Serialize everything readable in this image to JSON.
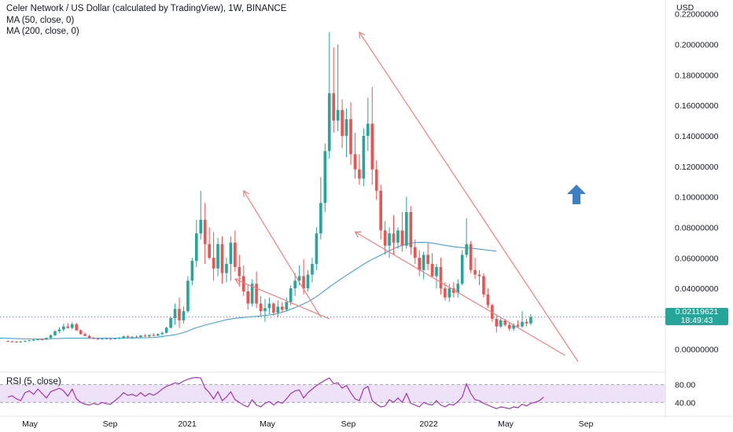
{
  "header": {
    "title": "Celer Network / US Dollar (calculated by TradingView), 1W, BINANCE",
    "ma50": "MA (50, close, 0)",
    "ma200": "MA (200, close, 0)",
    "currency": "USD"
  },
  "rsi": {
    "label": "RSI (5, close)",
    "levels": [
      "80.00",
      "40.00"
    ]
  },
  "price_badge": {
    "price": "0.02119621",
    "countdown": "18:49:43"
  },
  "colors": {
    "up": "#26a69a",
    "down": "#ef5350",
    "ma": "#4a9fd8",
    "trend": "#f08080",
    "rsi": "#9c27b0",
    "rsi_band": "#e7d6f7",
    "arrow": "#3d7fc7"
  },
  "chart_data": [
    {
      "type": "candlestick",
      "title": "Celer Network / US Dollar (calculated by TradingView), 1W, BINANCE",
      "ylabel": "USD",
      "ylim": [
        -0.012,
        0.225
      ],
      "y_ticks": [
        "0.22000000",
        "0.20000000",
        "0.18000000",
        "0.16000000",
        "0.14000000",
        "0.12000000",
        "0.10000000",
        "0.08000000",
        "0.06000000",
        "0.04000000",
        "0.00000000"
      ],
      "x_ticks": [
        "May",
        "Sep",
        "2021",
        "May",
        "Sep",
        "2022",
        "May",
        "Sep"
      ],
      "last_price": 0.02119621,
      "candles": [
        [
          0.0054,
          0.0058,
          0.0049,
          0.0052
        ],
        [
          0.0052,
          0.0056,
          0.0047,
          0.005
        ],
        [
          0.005,
          0.0054,
          0.0045,
          0.0048
        ],
        [
          0.0048,
          0.0053,
          0.0044,
          0.0051
        ],
        [
          0.0051,
          0.0058,
          0.0048,
          0.0055
        ],
        [
          0.0055,
          0.0062,
          0.0052,
          0.0059
        ],
        [
          0.0059,
          0.0065,
          0.0055,
          0.0062
        ],
        [
          0.0062,
          0.007,
          0.0058,
          0.0066
        ],
        [
          0.0066,
          0.0072,
          0.006,
          0.0064
        ],
        [
          0.0064,
          0.0078,
          0.006,
          0.0075
        ],
        [
          0.0075,
          0.0098,
          0.007,
          0.0092
        ],
        [
          0.0092,
          0.0125,
          0.0088,
          0.0118
        ],
        [
          0.0118,
          0.0145,
          0.0105,
          0.013
        ],
        [
          0.013,
          0.0168,
          0.0118,
          0.015
        ],
        [
          0.015,
          0.0172,
          0.0135,
          0.014
        ],
        [
          0.014,
          0.0178,
          0.0132,
          0.0165
        ],
        [
          0.0165,
          0.0175,
          0.012,
          0.0125
        ],
        [
          0.0125,
          0.013,
          0.0095,
          0.01
        ],
        [
          0.01,
          0.011,
          0.0085,
          0.0088
        ],
        [
          0.0088,
          0.0095,
          0.007,
          0.0074
        ],
        [
          0.0074,
          0.0082,
          0.0066,
          0.007
        ],
        [
          0.007,
          0.0078,
          0.0062,
          0.0068
        ],
        [
          0.0068,
          0.0075,
          0.0062,
          0.0071
        ],
        [
          0.0071,
          0.0078,
          0.0065,
          0.0069
        ],
        [
          0.0069,
          0.0074,
          0.0063,
          0.0067
        ],
        [
          0.0067,
          0.0076,
          0.0064,
          0.0072
        ],
        [
          0.0072,
          0.008,
          0.0066,
          0.0076
        ],
        [
          0.0076,
          0.009,
          0.007,
          0.0085
        ],
        [
          0.0085,
          0.0092,
          0.0074,
          0.0078
        ],
        [
          0.0078,
          0.0086,
          0.0071,
          0.0082
        ],
        [
          0.0082,
          0.0092,
          0.0076,
          0.008
        ],
        [
          0.008,
          0.0095,
          0.0074,
          0.009
        ],
        [
          0.009,
          0.01,
          0.008,
          0.0085
        ],
        [
          0.0085,
          0.0098,
          0.0078,
          0.0094
        ],
        [
          0.0094,
          0.0106,
          0.0085,
          0.009
        ],
        [
          0.009,
          0.0104,
          0.0086,
          0.01
        ],
        [
          0.01,
          0.0115,
          0.0092,
          0.0108
        ],
        [
          0.0108,
          0.0148,
          0.0104,
          0.0142
        ],
        [
          0.0142,
          0.0215,
          0.0135,
          0.0205
        ],
        [
          0.0205,
          0.03,
          0.016,
          0.0265
        ],
        [
          0.0265,
          0.034,
          0.014,
          0.019
        ],
        [
          0.019,
          0.028,
          0.017,
          0.025
        ],
        [
          0.025,
          0.048,
          0.024,
          0.045
        ],
        [
          0.045,
          0.06,
          0.042,
          0.058
        ],
        [
          0.058,
          0.085,
          0.054,
          0.076
        ],
        [
          0.076,
          0.104,
          0.072,
          0.085
        ],
        [
          0.085,
          0.096,
          0.056,
          0.069
        ],
        [
          0.069,
          0.08,
          0.059,
          0.06
        ],
        [
          0.06,
          0.077,
          0.045,
          0.053
        ],
        [
          0.053,
          0.073,
          0.048,
          0.069
        ],
        [
          0.069,
          0.074,
          0.043,
          0.05
        ],
        [
          0.05,
          0.06,
          0.044,
          0.056
        ],
        [
          0.056,
          0.074,
          0.045,
          0.07
        ],
        [
          0.07,
          0.078,
          0.051,
          0.054
        ],
        [
          0.054,
          0.062,
          0.041,
          0.048
        ],
        [
          0.048,
          0.055,
          0.035,
          0.038
        ],
        [
          0.038,
          0.042,
          0.026,
          0.03
        ],
        [
          0.03,
          0.046,
          0.028,
          0.043
        ],
        [
          0.043,
          0.051,
          0.027,
          0.03
        ],
        [
          0.03,
          0.035,
          0.022,
          0.025
        ],
        [
          0.025,
          0.033,
          0.018,
          0.027
        ],
        [
          0.027,
          0.034,
          0.023,
          0.03
        ],
        [
          0.03,
          0.031,
          0.022,
          0.024
        ],
        [
          0.024,
          0.032,
          0.021,
          0.028
        ],
        [
          0.028,
          0.031,
          0.024,
          0.026
        ],
        [
          0.026,
          0.034,
          0.025,
          0.031
        ],
        [
          0.031,
          0.042,
          0.029,
          0.04
        ],
        [
          0.04,
          0.05,
          0.035,
          0.045
        ],
        [
          0.045,
          0.055,
          0.042,
          0.048
        ],
        [
          0.048,
          0.059,
          0.036,
          0.04
        ],
        [
          0.04,
          0.052,
          0.038,
          0.049
        ],
        [
          0.049,
          0.06,
          0.044,
          0.056
        ],
        [
          0.056,
          0.08,
          0.052,
          0.076
        ],
        [
          0.076,
          0.113,
          0.072,
          0.096
        ],
        [
          0.096,
          0.135,
          0.09,
          0.13
        ],
        [
          0.13,
          0.208,
          0.125,
          0.168
        ],
        [
          0.168,
          0.198,
          0.142,
          0.15
        ],
        [
          0.15,
          0.2,
          0.143,
          0.157
        ],
        [
          0.157,
          0.164,
          0.132,
          0.14
        ],
        [
          0.14,
          0.158,
          0.126,
          0.151
        ],
        [
          0.151,
          0.162,
          0.121,
          0.128
        ],
        [
          0.128,
          0.142,
          0.112,
          0.118
        ],
        [
          0.118,
          0.128,
          0.108,
          0.112
        ],
        [
          0.112,
          0.145,
          0.107,
          0.14
        ],
        [
          0.14,
          0.165,
          0.13,
          0.148
        ],
        [
          0.148,
          0.172,
          0.108,
          0.118
        ],
        [
          0.118,
          0.124,
          0.098,
          0.104
        ],
        [
          0.104,
          0.108,
          0.072,
          0.078
        ],
        [
          0.078,
          0.084,
          0.062,
          0.068
        ],
        [
          0.068,
          0.08,
          0.06,
          0.076
        ],
        [
          0.076,
          0.088,
          0.062,
          0.07
        ],
        [
          0.07,
          0.08,
          0.066,
          0.078
        ],
        [
          0.078,
          0.09,
          0.064,
          0.068
        ],
        [
          0.068,
          0.1,
          0.066,
          0.09
        ],
        [
          0.09,
          0.094,
          0.062,
          0.067
        ],
        [
          0.067,
          0.072,
          0.056,
          0.06
        ],
        [
          0.06,
          0.065,
          0.048,
          0.052
        ],
        [
          0.052,
          0.064,
          0.046,
          0.062
        ],
        [
          0.062,
          0.07,
          0.052,
          0.056
        ],
        [
          0.056,
          0.063,
          0.047,
          0.048
        ],
        [
          0.048,
          0.056,
          0.04,
          0.054
        ],
        [
          0.054,
          0.06,
          0.036,
          0.04
        ],
        [
          0.04,
          0.044,
          0.032,
          0.034
        ],
        [
          0.034,
          0.043,
          0.031,
          0.04
        ],
        [
          0.04,
          0.044,
          0.034,
          0.037
        ],
        [
          0.037,
          0.046,
          0.034,
          0.043
        ],
        [
          0.043,
          0.065,
          0.042,
          0.062
        ],
        [
          0.062,
          0.086,
          0.06,
          0.069
        ],
        [
          0.069,
          0.071,
          0.05,
          0.052
        ],
        [
          0.052,
          0.06,
          0.046,
          0.049
        ],
        [
          0.049,
          0.052,
          0.042,
          0.048
        ],
        [
          0.048,
          0.05,
          0.034,
          0.036
        ],
        [
          0.036,
          0.04,
          0.027,
          0.029
        ],
        [
          0.029,
          0.03,
          0.018,
          0.02
        ],
        [
          0.02,
          0.022,
          0.011,
          0.015
        ],
        [
          0.015,
          0.021,
          0.014,
          0.019
        ],
        [
          0.019,
          0.02,
          0.015,
          0.016
        ],
        [
          0.016,
          0.018,
          0.012,
          0.0135
        ],
        [
          0.0135,
          0.017,
          0.012,
          0.016
        ],
        [
          0.016,
          0.019,
          0.014,
          0.015
        ],
        [
          0.015,
          0.025,
          0.014,
          0.018
        ],
        [
          0.018,
          0.02,
          0.015,
          0.017
        ],
        [
          0.017,
          0.023,
          0.016,
          0.0212
        ]
      ],
      "ma": [
        0.0074,
        0.0073,
        0.0072,
        0.0071,
        0.007,
        0.0069,
        0.0068,
        0.0068,
        0.0067,
        0.0067,
        0.0067,
        0.0068,
        0.0069,
        0.007,
        0.0071,
        0.0072,
        0.0073,
        0.0073,
        0.0073,
        0.0073,
        0.0073,
        0.0072,
        0.0072,
        0.0072,
        0.0072,
        0.0072,
        0.0072,
        0.0073,
        0.0073,
        0.0073,
        0.0074,
        0.0074,
        0.0075,
        0.0075,
        0.0076,
        0.0077,
        0.0078,
        0.008,
        0.0084,
        0.0088,
        0.0092,
        0.0096,
        0.0102,
        0.011,
        0.012,
        0.0132,
        0.0142,
        0.015,
        0.0158,
        0.0166,
        0.0173,
        0.018,
        0.0187,
        0.0194,
        0.0199,
        0.0203,
        0.0206,
        0.0209,
        0.0212,
        0.0214,
        0.0216,
        0.0219,
        0.0222,
        0.0225,
        0.0229,
        0.0235,
        0.0243,
        0.0252,
        0.0263,
        0.0274,
        0.0286,
        0.0298,
        0.0312,
        0.0328,
        0.0346,
        0.0366,
        0.0387,
        0.0408,
        0.0428,
        0.0448,
        0.0467,
        0.0486,
        0.0504,
        0.0522,
        0.054,
        0.0558,
        0.0575,
        0.059,
        0.0604,
        0.0618,
        0.0632,
        0.0646,
        0.066,
        0.0672,
        0.0682,
        0.069,
        0.0696,
        0.07,
        0.0702,
        0.0702,
        0.07,
        0.0697,
        0.0692,
        0.0687,
        0.0682,
        0.0677,
        0.0673,
        0.067,
        0.0667,
        0.0665,
        0.0663,
        0.066,
        0.0657,
        0.0654,
        0.065,
        0.0647,
        0.0643
      ],
      "rsi": [
        52,
        55,
        48,
        44,
        62,
        66,
        58,
        70,
        60,
        50,
        64,
        68,
        72,
        66,
        54,
        70,
        48,
        40,
        36,
        34,
        38,
        35,
        40,
        37,
        36,
        44,
        52,
        62,
        56,
        58,
        54,
        62,
        54,
        60,
        56,
        62,
        70,
        76,
        80,
        84,
        82,
        88,
        92,
        95,
        96,
        95,
        72,
        62,
        48,
        64,
        44,
        52,
        64,
        46,
        40,
        34,
        30,
        46,
        34,
        30,
        38,
        42,
        34,
        42,
        38,
        48,
        60,
        66,
        68,
        50,
        62,
        70,
        78,
        84,
        90,
        95,
        82,
        84,
        72,
        78,
        62,
        48,
        44,
        70,
        76,
        44,
        36,
        30,
        32,
        46,
        40,
        50,
        40,
        60,
        38,
        34,
        30,
        40,
        36,
        34,
        44,
        34,
        30,
        36,
        34,
        42,
        52,
        82,
        60,
        46,
        44,
        38,
        34,
        30,
        26,
        30,
        28,
        26,
        30,
        28,
        36,
        32,
        38,
        40,
        44,
        52
      ]
    }
  ]
}
